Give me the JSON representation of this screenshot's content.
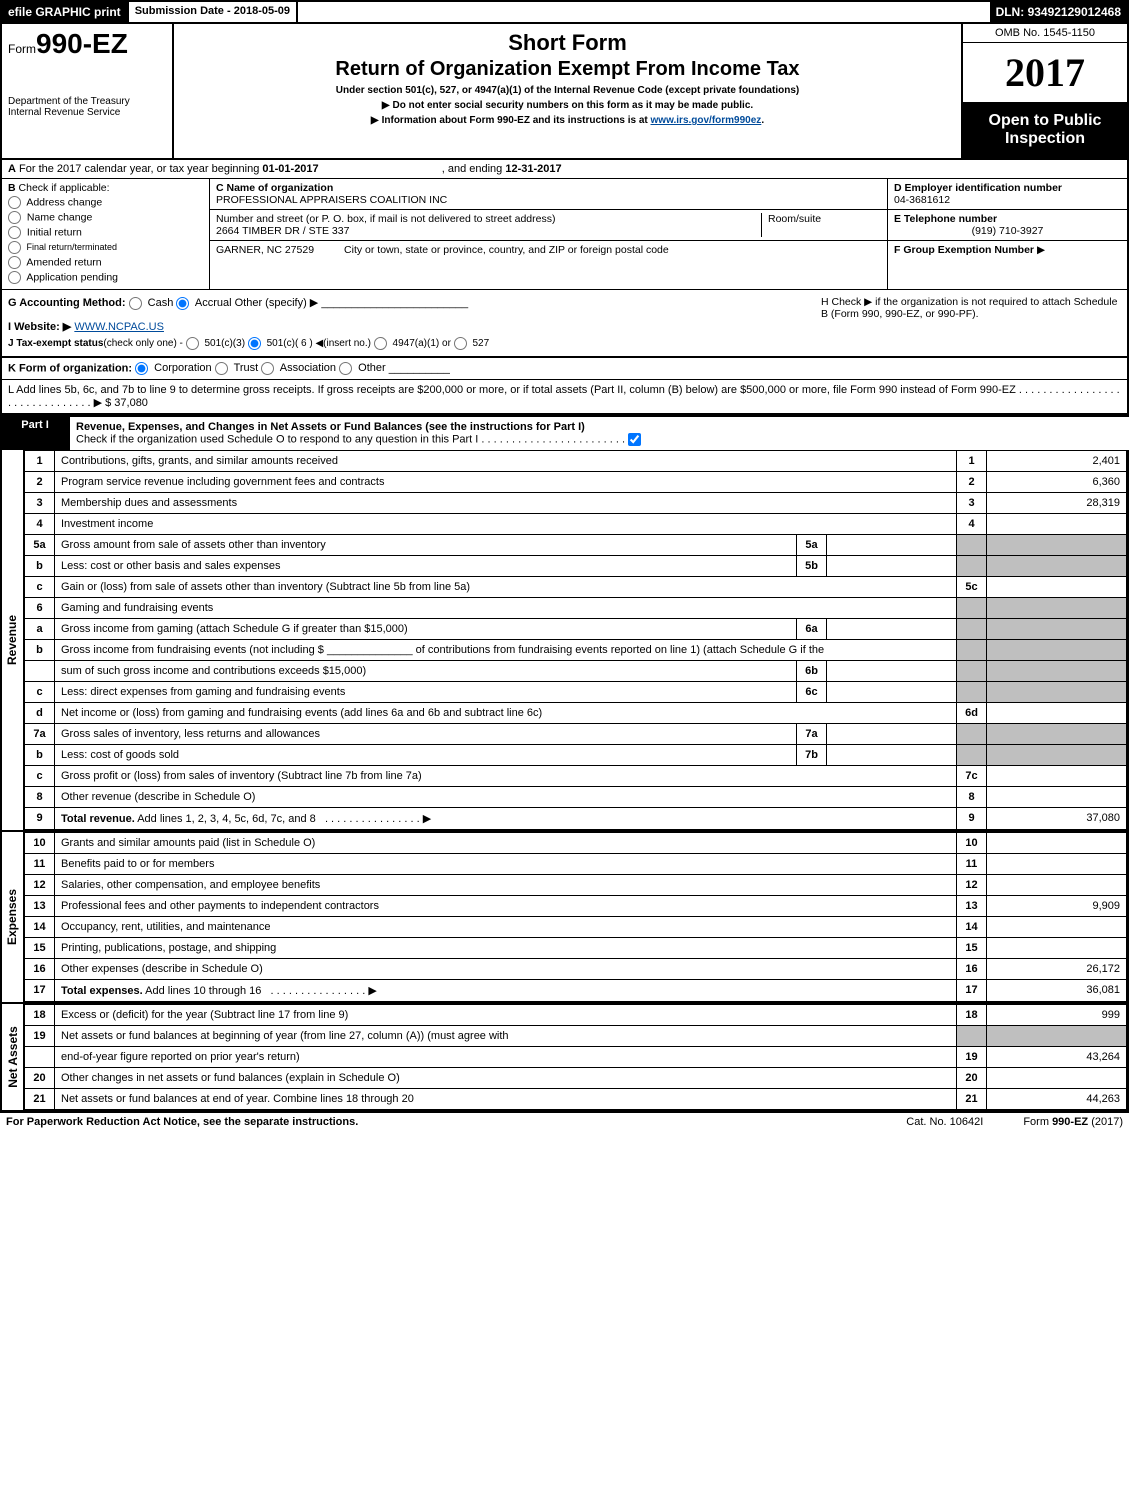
{
  "top": {
    "efile": "efile GRAPHIC print",
    "submission_label": "Submission Date - ",
    "submission_date": "2018-05-09",
    "dln_label": "DLN: ",
    "dln": "93492129012468"
  },
  "header": {
    "form_word": "Form",
    "form_num": "990-EZ",
    "dept1": "Department of the Treasury",
    "dept2": "Internal Revenue Service",
    "title_short": "Short Form",
    "title_main": "Return of Organization Exempt From Income Tax",
    "subtitle": "Under section 501(c), 527, or 4947(a)(1) of the Internal Revenue Code (except private foundations)",
    "note1": "Do not enter social security numbers on this form as it may be made public.",
    "note2_pre": "Information about Form 990-EZ and its instructions is at ",
    "note2_link": "www.irs.gov/form990ez",
    "note2_post": ".",
    "omb": "OMB No. 1545-1150",
    "year": "2017",
    "open1": "Open to Public",
    "open2": "Inspection"
  },
  "lineA": {
    "text_pre": "For the 2017 calendar year, or tax year beginning ",
    "begin": "01-01-2017",
    "mid": ", and ending ",
    "end": "12-31-2017"
  },
  "boxB": {
    "label": "Check if applicable:",
    "opts": [
      "Address change",
      "Name change",
      "Initial return",
      "Final return/terminated",
      "Amended return",
      "Application pending"
    ]
  },
  "boxC": {
    "label": "C Name of organization",
    "name": "PROFESSIONAL APPRAISERS COALITION INC",
    "addr_label": "Number and street (or P. O. box, if mail is not delivered to street address)",
    "addr": "2664 TIMBER DR / STE 337",
    "room_label": "Room/suite",
    "city_label": "City or town, state or province, country, and ZIP or foreign postal code",
    "city": "GARNER, NC  27529"
  },
  "boxD": {
    "label": "D Employer identification number",
    "val": "04-3681612"
  },
  "boxE": {
    "label": "E Telephone number",
    "val": "(919) 710-3927"
  },
  "boxF": {
    "label": "F Group Exemption Number",
    "arrow": "▶"
  },
  "lineG": {
    "label": "G Accounting Method:",
    "opts": [
      "Cash",
      "Accrual"
    ],
    "other": "Other (specify) ▶"
  },
  "lineH": {
    "text": "H  Check ▶      if the organization is not required to attach Schedule B (Form 990, 990-EZ, or 990-PF)."
  },
  "lineI": {
    "label": "I Website: ▶",
    "val": "WWW.NCPAC.US"
  },
  "lineJ": {
    "label": "J Tax-exempt status",
    "small": "(check only one) -",
    "opts": [
      "501(c)(3)",
      "501(c)( 6 ) ◀(insert no.)",
      "4947(a)(1) or",
      "527"
    ]
  },
  "lineK": {
    "label": "K Form of organization:",
    "opts": [
      "Corporation",
      "Trust",
      "Association",
      "Other"
    ]
  },
  "lineL": {
    "text": "L Add lines 5b, 6c, and 7b to line 9 to determine gross receipts. If gross receipts are $200,000 or more, or if total assets (Part II, column (B) below) are $500,000 or more, file Form 990 instead of Form 990-EZ",
    "amount_label": "▶ $ ",
    "amount": "37,080"
  },
  "part1": {
    "label": "Part I",
    "title": "Revenue, Expenses, and Changes in Net Assets or Fund Balances (see the instructions for Part I)",
    "check_line": "Check if the organization used Schedule O to respond to any question in this Part I"
  },
  "sections": {
    "revenue": "Revenue",
    "expenses": "Expenses",
    "netassets": "Net Assets"
  },
  "rows": [
    {
      "n": "1",
      "desc": "Contributions, gifts, grants, and similar amounts received",
      "ln": "1",
      "val": "2,401"
    },
    {
      "n": "2",
      "desc": "Program service revenue including government fees and contracts",
      "ln": "2",
      "val": "6,360"
    },
    {
      "n": "3",
      "desc": "Membership dues and assessments",
      "ln": "3",
      "val": "28,319"
    },
    {
      "n": "4",
      "desc": "Investment income",
      "ln": "4",
      "val": ""
    },
    {
      "n": "5a",
      "desc": "Gross amount from sale of assets other than inventory",
      "mini": "5a"
    },
    {
      "n": "b",
      "desc": "Less: cost or other basis and sales expenses",
      "mini": "5b"
    },
    {
      "n": "c",
      "desc": "Gain or (loss) from sale of assets other than inventory (Subtract line 5b from line 5a)",
      "ln": "5c",
      "val": ""
    },
    {
      "n": "6",
      "desc": "Gaming and fundraising events"
    },
    {
      "n": "a",
      "desc": "Gross income from gaming (attach Schedule G if greater than $15,000)",
      "mini": "6a"
    },
    {
      "n": "b",
      "desc": "Gross income from fundraising events (not including $ ______________   of contributions from fundraising events reported on line 1) (attach Schedule G if the"
    },
    {
      "n": "",
      "desc": "sum of such gross income and contributions exceeds $15,000)",
      "mini": "6b"
    },
    {
      "n": "c",
      "desc": "Less: direct expenses from gaming and fundraising events",
      "mini": "6c"
    },
    {
      "n": "d",
      "desc": "Net income or (loss) from gaming and fundraising events (add lines 6a and 6b and subtract line 6c)",
      "ln": "6d",
      "val": ""
    },
    {
      "n": "7a",
      "desc": "Gross sales of inventory, less returns and allowances",
      "mini": "7a"
    },
    {
      "n": "b",
      "desc": "Less: cost of goods sold",
      "mini": "7b"
    },
    {
      "n": "c",
      "desc": "Gross profit or (loss) from sales of inventory (Subtract line 7b from line 7a)",
      "ln": "7c",
      "val": ""
    },
    {
      "n": "8",
      "desc": "Other revenue (describe in Schedule O)",
      "ln": "8",
      "val": ""
    },
    {
      "n": "9",
      "desc": "Total revenue. Add lines 1, 2, 3, 4, 5c, 6d, 7c, and 8",
      "ln": "9",
      "val": "37,080",
      "bold": true,
      "arrow": true
    }
  ],
  "exp_rows": [
    {
      "n": "10",
      "desc": "Grants and similar amounts paid (list in Schedule O)",
      "ln": "10",
      "val": ""
    },
    {
      "n": "11",
      "desc": "Benefits paid to or for members",
      "ln": "11",
      "val": ""
    },
    {
      "n": "12",
      "desc": "Salaries, other compensation, and employee benefits",
      "ln": "12",
      "val": ""
    },
    {
      "n": "13",
      "desc": "Professional fees and other payments to independent contractors",
      "ln": "13",
      "val": "9,909"
    },
    {
      "n": "14",
      "desc": "Occupancy, rent, utilities, and maintenance",
      "ln": "14",
      "val": ""
    },
    {
      "n": "15",
      "desc": "Printing, publications, postage, and shipping",
      "ln": "15",
      "val": ""
    },
    {
      "n": "16",
      "desc": "Other expenses (describe in Schedule O)",
      "ln": "16",
      "val": "26,172"
    },
    {
      "n": "17",
      "desc": "Total expenses. Add lines 10 through 16",
      "ln": "17",
      "val": "36,081",
      "bold": true,
      "arrow": true
    }
  ],
  "na_rows": [
    {
      "n": "18",
      "desc": "Excess or (deficit) for the year (Subtract line 17 from line 9)",
      "ln": "18",
      "val": "999"
    },
    {
      "n": "19",
      "desc": "Net assets or fund balances at beginning of year (from line 27, column (A)) (must agree with"
    },
    {
      "n": "",
      "desc": "end-of-year figure reported on prior year's return)",
      "ln": "19",
      "val": "43,264"
    },
    {
      "n": "20",
      "desc": "Other changes in net assets or fund balances (explain in Schedule O)",
      "ln": "20",
      "val": ""
    },
    {
      "n": "21",
      "desc": "Net assets or fund balances at end of year. Combine lines 18 through 20",
      "ln": "21",
      "val": "44,263"
    }
  ],
  "footer": {
    "left": "For Paperwork Reduction Act Notice, see the separate instructions.",
    "mid": "Cat. No. 10642I",
    "right": "Form 990-EZ (2017)"
  },
  "colors": {
    "black": "#000000",
    "grey": "#bfbfbf",
    "link": "#004b9b"
  }
}
